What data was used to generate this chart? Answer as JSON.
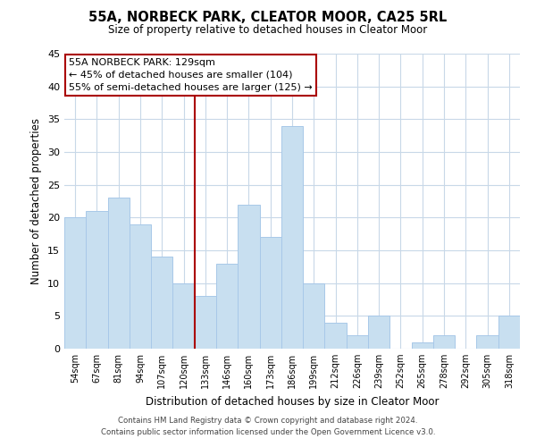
{
  "title": "55A, NORBECK PARK, CLEATOR MOOR, CA25 5RL",
  "subtitle": "Size of property relative to detached houses in Cleator Moor",
  "xlabel": "Distribution of detached houses by size in Cleator Moor",
  "ylabel": "Number of detached properties",
  "categories": [
    "54sqm",
    "67sqm",
    "81sqm",
    "94sqm",
    "107sqm",
    "120sqm",
    "133sqm",
    "146sqm",
    "160sqm",
    "173sqm",
    "186sqm",
    "199sqm",
    "212sqm",
    "226sqm",
    "239sqm",
    "252sqm",
    "265sqm",
    "278sqm",
    "292sqm",
    "305sqm",
    "318sqm"
  ],
  "values": [
    20,
    21,
    23,
    19,
    14,
    10,
    8,
    13,
    22,
    17,
    34,
    10,
    4,
    2,
    5,
    0,
    1,
    2,
    0,
    2,
    5
  ],
  "bar_color": "#c8dff0",
  "bar_edge_color": "#a8c8e8",
  "highlight_line_color": "#aa0000",
  "ylim": [
    0,
    45
  ],
  "yticks": [
    0,
    5,
    10,
    15,
    20,
    25,
    30,
    35,
    40,
    45
  ],
  "annotation_title": "55A NORBECK PARK: 129sqm",
  "annotation_line1": "← 45% of detached houses are smaller (104)",
  "annotation_line2": "55% of semi-detached houses are larger (125) →",
  "annotation_box_color": "#ffffff",
  "annotation_box_edge": "#aa0000",
  "footer_line1": "Contains HM Land Registry data © Crown copyright and database right 2024.",
  "footer_line2": "Contains public sector information licensed under the Open Government Licence v3.0.",
  "background_color": "#ffffff",
  "grid_color": "#c8d8e8"
}
